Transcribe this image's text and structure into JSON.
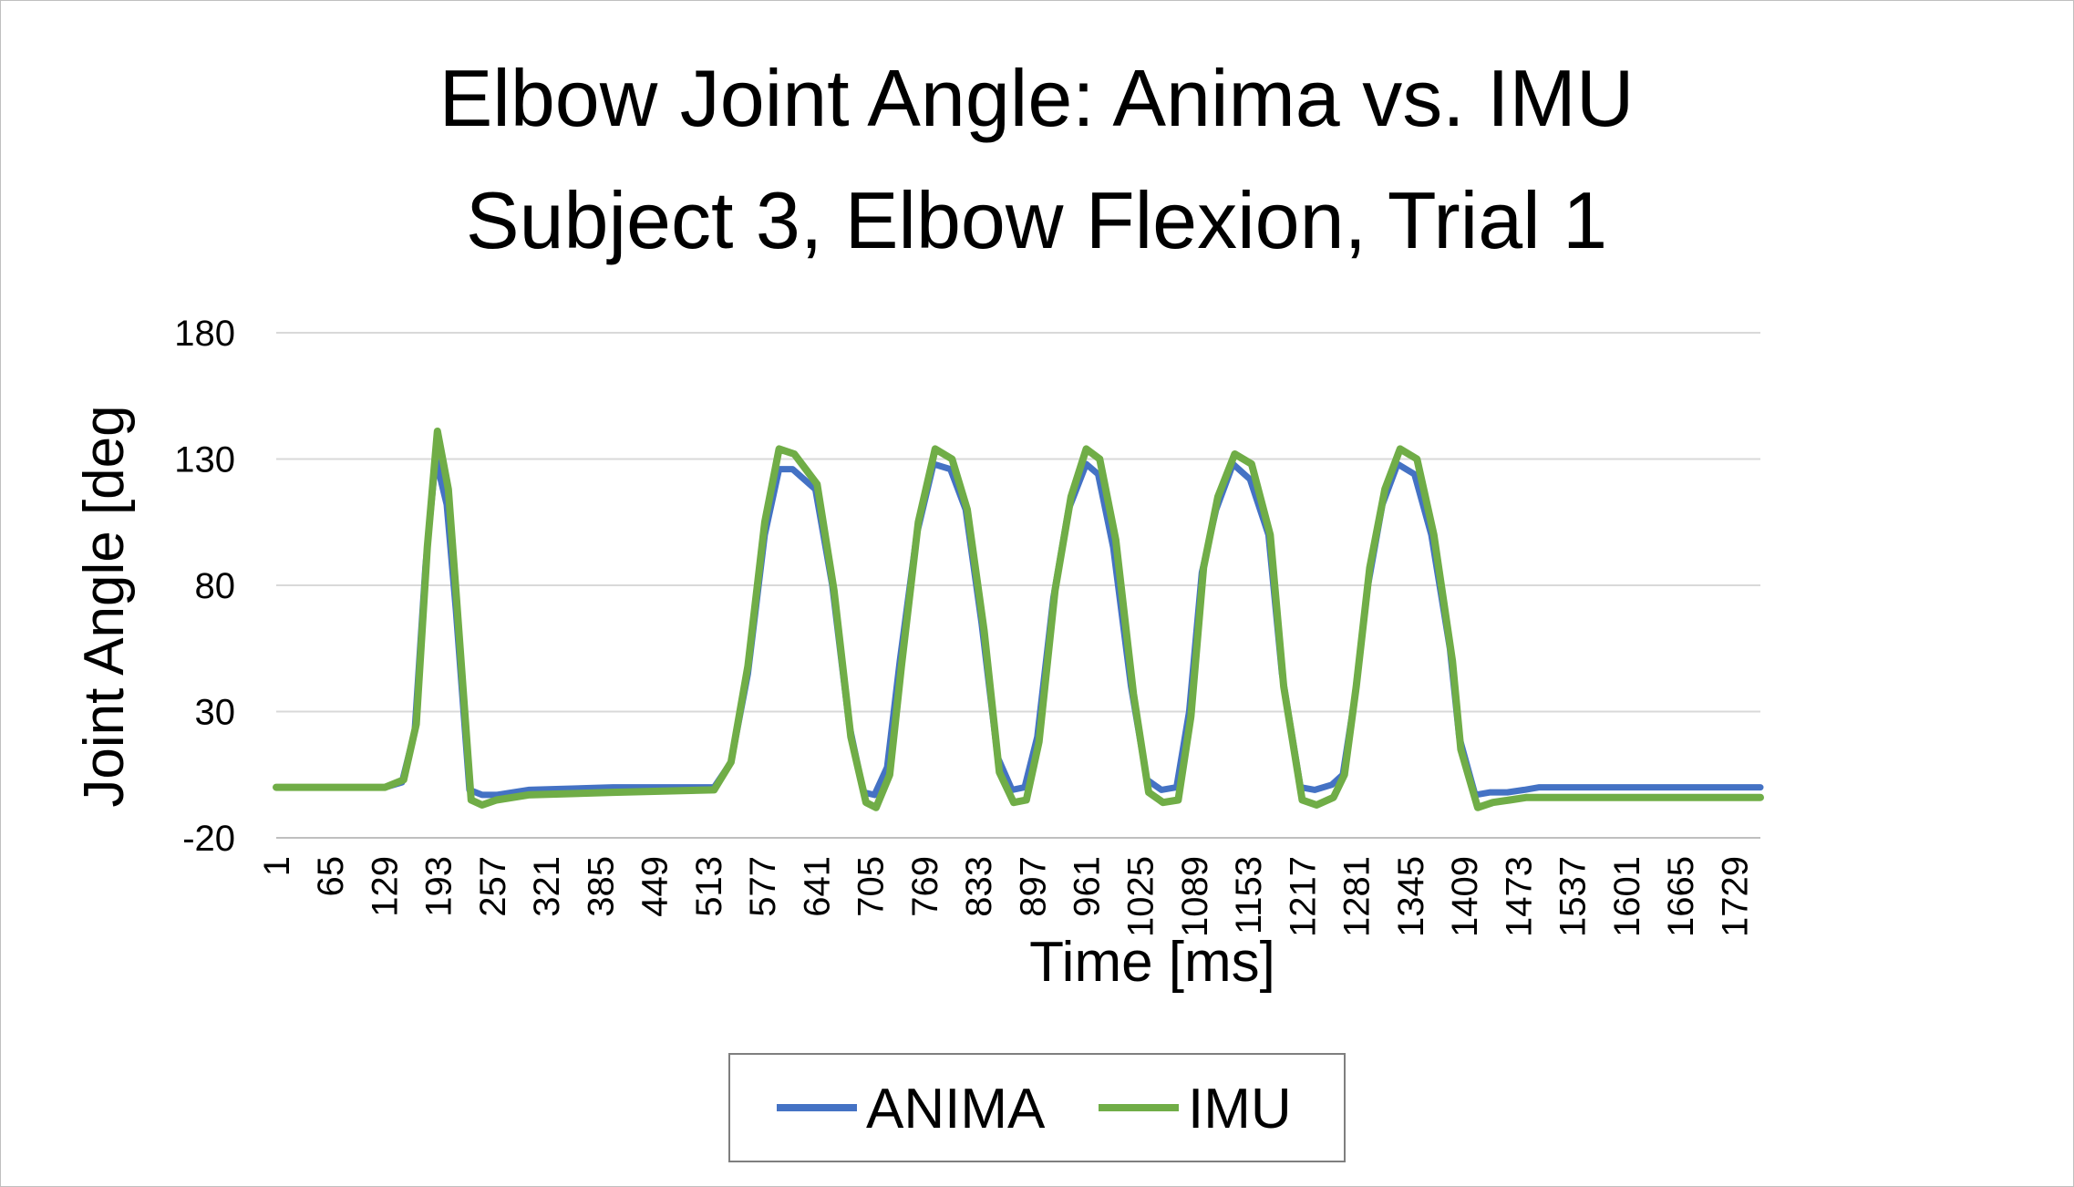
{
  "chart_data": {
    "type": "line",
    "title": "Elbow Joint Angle: Anima vs. IMU",
    "subtitle": "Subject 3, Elbow Flexion, Trial 1",
    "xlabel": "Time [ms]",
    "ylabel": "Joint Angle [deg",
    "ylim": [
      -20,
      180
    ],
    "yticks": [
      -20,
      30,
      80,
      130,
      180
    ],
    "xlim": [
      1,
      1760
    ],
    "xticks": [
      1,
      65,
      129,
      193,
      257,
      321,
      385,
      449,
      513,
      577,
      641,
      705,
      769,
      833,
      897,
      961,
      1025,
      1089,
      1153,
      1217,
      1281,
      1345,
      1409,
      1473,
      1537,
      1601,
      1665,
      1729
    ],
    "grid": true,
    "legend_position": "bottom",
    "series": [
      {
        "name": "ANIMA",
        "color": "#4472C4",
        "x": [
          1,
          130,
          150,
          165,
          178,
          190,
          203,
          214,
          230,
          245,
          262,
          300,
          400,
          520,
          540,
          560,
          580,
          597,
          613,
          640,
          660,
          680,
          697,
          710,
          725,
          740,
          760,
          780,
          800,
          818,
          837,
          856,
          873,
          888,
          903,
          922,
          940,
          961,
          975,
          993,
          1014,
          1033,
          1050,
          1068,
          1083,
          1098,
          1115,
          1135,
          1155,
          1177,
          1193,
          1215,
          1232,
          1252,
          1265,
          1279,
          1295,
          1312,
          1330,
          1350,
          1370,
          1392,
          1403,
          1422,
          1440,
          1460,
          1480,
          1498,
          1540,
          1600,
          1660,
          1760
        ],
        "values": [
          0,
          0,
          2,
          22,
          88,
          130,
          112,
          70,
          -1,
          -3,
          -3,
          -1,
          0,
          0,
          10,
          45,
          100,
          126,
          126,
          118,
          80,
          25,
          -2,
          -3,
          8,
          50,
          100,
          128,
          126,
          110,
          65,
          12,
          -1,
          0,
          20,
          75,
          110,
          128,
          124,
          95,
          40,
          3,
          -1,
          0,
          30,
          85,
          110,
          128,
          122,
          100,
          45,
          0,
          -1,
          1,
          5,
          35,
          80,
          112,
          128,
          124,
          100,
          55,
          20,
          -3,
          -2,
          -2,
          -1,
          0,
          0,
          0,
          0,
          0
        ]
      },
      {
        "name": "IMU",
        "color": "#70AD47",
        "x": [
          1,
          130,
          152,
          167,
          180,
          192,
          205,
          215,
          232,
          245,
          262,
          300,
          400,
          520,
          540,
          560,
          580,
          597,
          615,
          642,
          662,
          682,
          700,
          712,
          728,
          742,
          762,
          782,
          802,
          820,
          840,
          858,
          875,
          890,
          905,
          924,
          943,
          961,
          977,
          996,
          1017,
          1035,
          1052,
          1070,
          1085,
          1100,
          1117,
          1137,
          1157,
          1179,
          1195,
          1217,
          1234,
          1254,
          1267,
          1281,
          1297,
          1315,
          1333,
          1353,
          1373,
          1395,
          1405,
          1425,
          1443,
          1463,
          1483,
          1500,
          1540,
          1600,
          1660,
          1760
        ],
        "values": [
          0,
          0,
          3,
          25,
          95,
          141,
          118,
          73,
          -5,
          -7,
          -5,
          -3,
          -2,
          -1,
          10,
          48,
          105,
          134,
          132,
          120,
          78,
          20,
          -6,
          -8,
          5,
          48,
          105,
          134,
          130,
          110,
          62,
          6,
          -6,
          -5,
          18,
          78,
          115,
          134,
          130,
          98,
          37,
          -2,
          -6,
          -5,
          28,
          87,
          115,
          132,
          128,
          100,
          40,
          -5,
          -7,
          -4,
          5,
          40,
          87,
          118,
          134,
          130,
          100,
          50,
          15,
          -8,
          -6,
          -5,
          -4,
          -4,
          -4,
          -4,
          -4,
          -4
        ]
      }
    ]
  }
}
